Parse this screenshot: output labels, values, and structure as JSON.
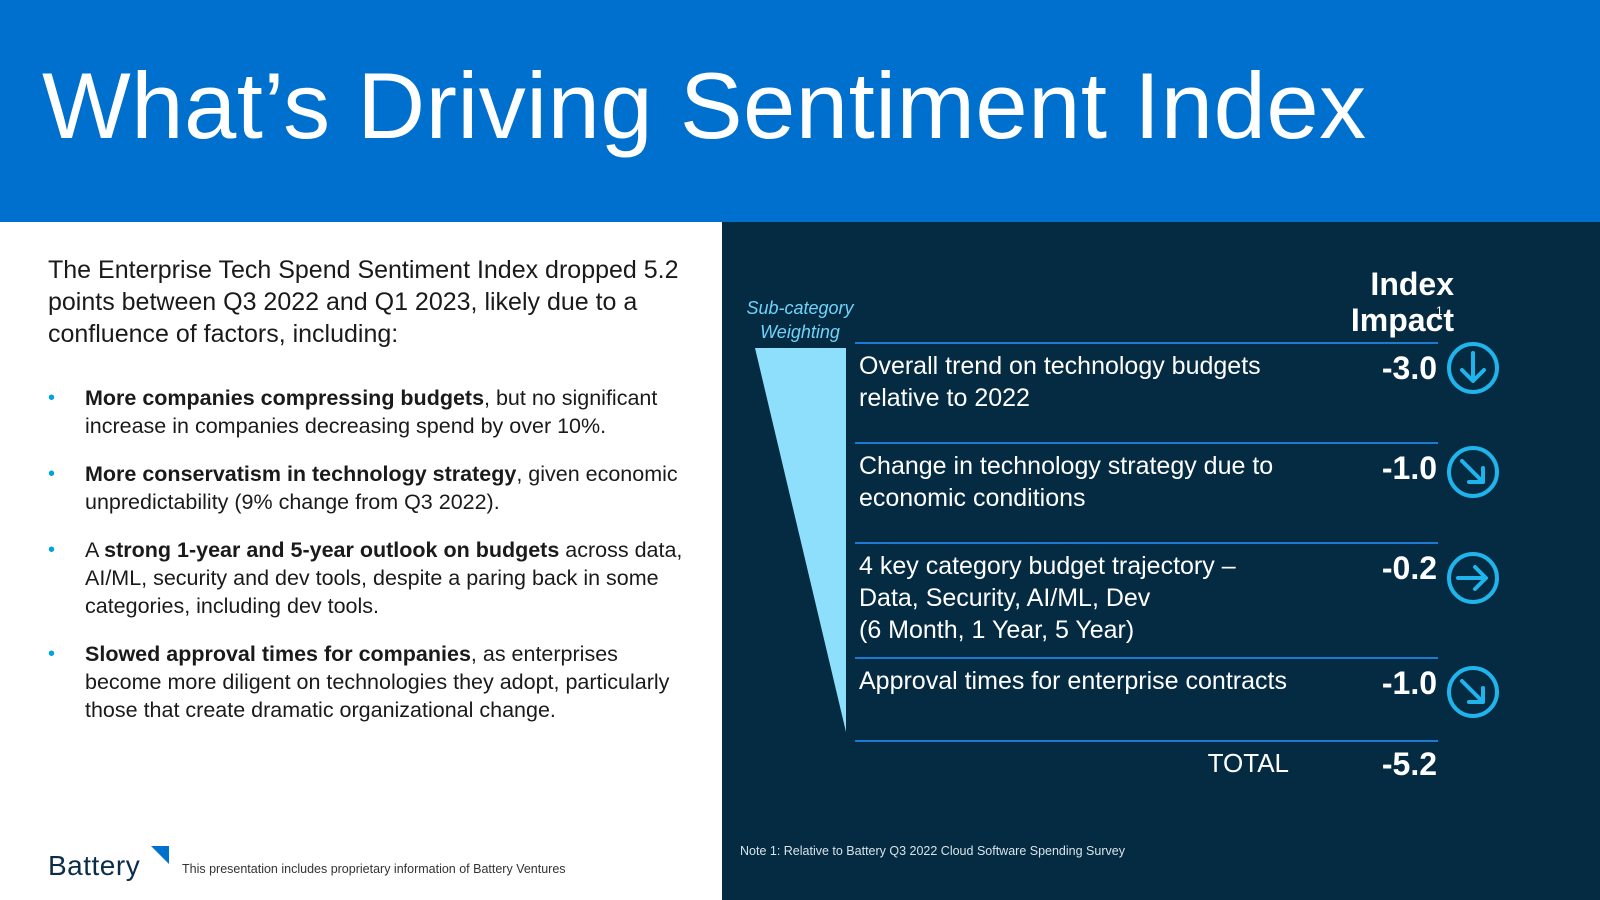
{
  "header": {
    "title": "What’s Driving Sentiment Index"
  },
  "left": {
    "intro": "The Enterprise Tech Spend Sentiment Index dropped 5.2 points between Q3 2022 and Q1 2023, likely due to a confluence of factors, including:",
    "bullet_symbol": "•",
    "bullets": [
      {
        "lead": "",
        "bold": "More companies compressing budgets",
        "rest": ", but no significant increase in companies decreasing spend by over 10%."
      },
      {
        "lead": "",
        "bold": "More conservatism in technology strategy",
        "rest": ", given economic unpredictability (9% change from Q3 2022)."
      },
      {
        "lead": "A ",
        "bold": "strong 1-year and 5-year outlook on budgets",
        "rest": " across data, AI/ML, security and dev tools, despite a paring back in some categories, including dev tools."
      },
      {
        "lead": "",
        "bold": "Slowed approval times for companies",
        "rest": ", as enterprises become more diligent on technologies they adopt, particularly those that create dramatic organizational change."
      }
    ],
    "logo_text": "Battery",
    "disclaimer": "This presentation includes proprietary information of Battery Ventures"
  },
  "panel": {
    "weight_label_line1": "Sub-category",
    "weight_label_line2": "Weighting",
    "column_header_line1": "Index",
    "column_header_line2": "Impact",
    "column_header_footnote": "1",
    "rows": [
      {
        "label": "Overall trend on technology budgets relative to 2022",
        "value": "-3.0",
        "arrow": "arrow-down-icon"
      },
      {
        "label": "Change in technology strategy due to economic conditions",
        "value": "-1.0",
        "arrow": "arrow-down-right-icon"
      },
      {
        "label_line1": "4 key category budget trajectory –",
        "label_line2": "Data, Security, AI/ML, Dev",
        "label_line3": "(6 Month, 1 Year, 5 Year)",
        "value": "-0.2",
        "arrow": "arrow-right-icon"
      },
      {
        "label": "Approval times for enterprise contracts",
        "value": "-1.0",
        "arrow": "arrow-down-right-icon"
      }
    ],
    "total_label": "TOTAL",
    "total_value": "-5.2",
    "footnote": "Note 1: Relative to Battery Q3 2022 Cloud Software Spending Survey",
    "colors": {
      "accent": "#0070cf",
      "panel_bg": "#052b42",
      "arrow": "#1fb5ec",
      "funnel": "#8edffc"
    }
  }
}
